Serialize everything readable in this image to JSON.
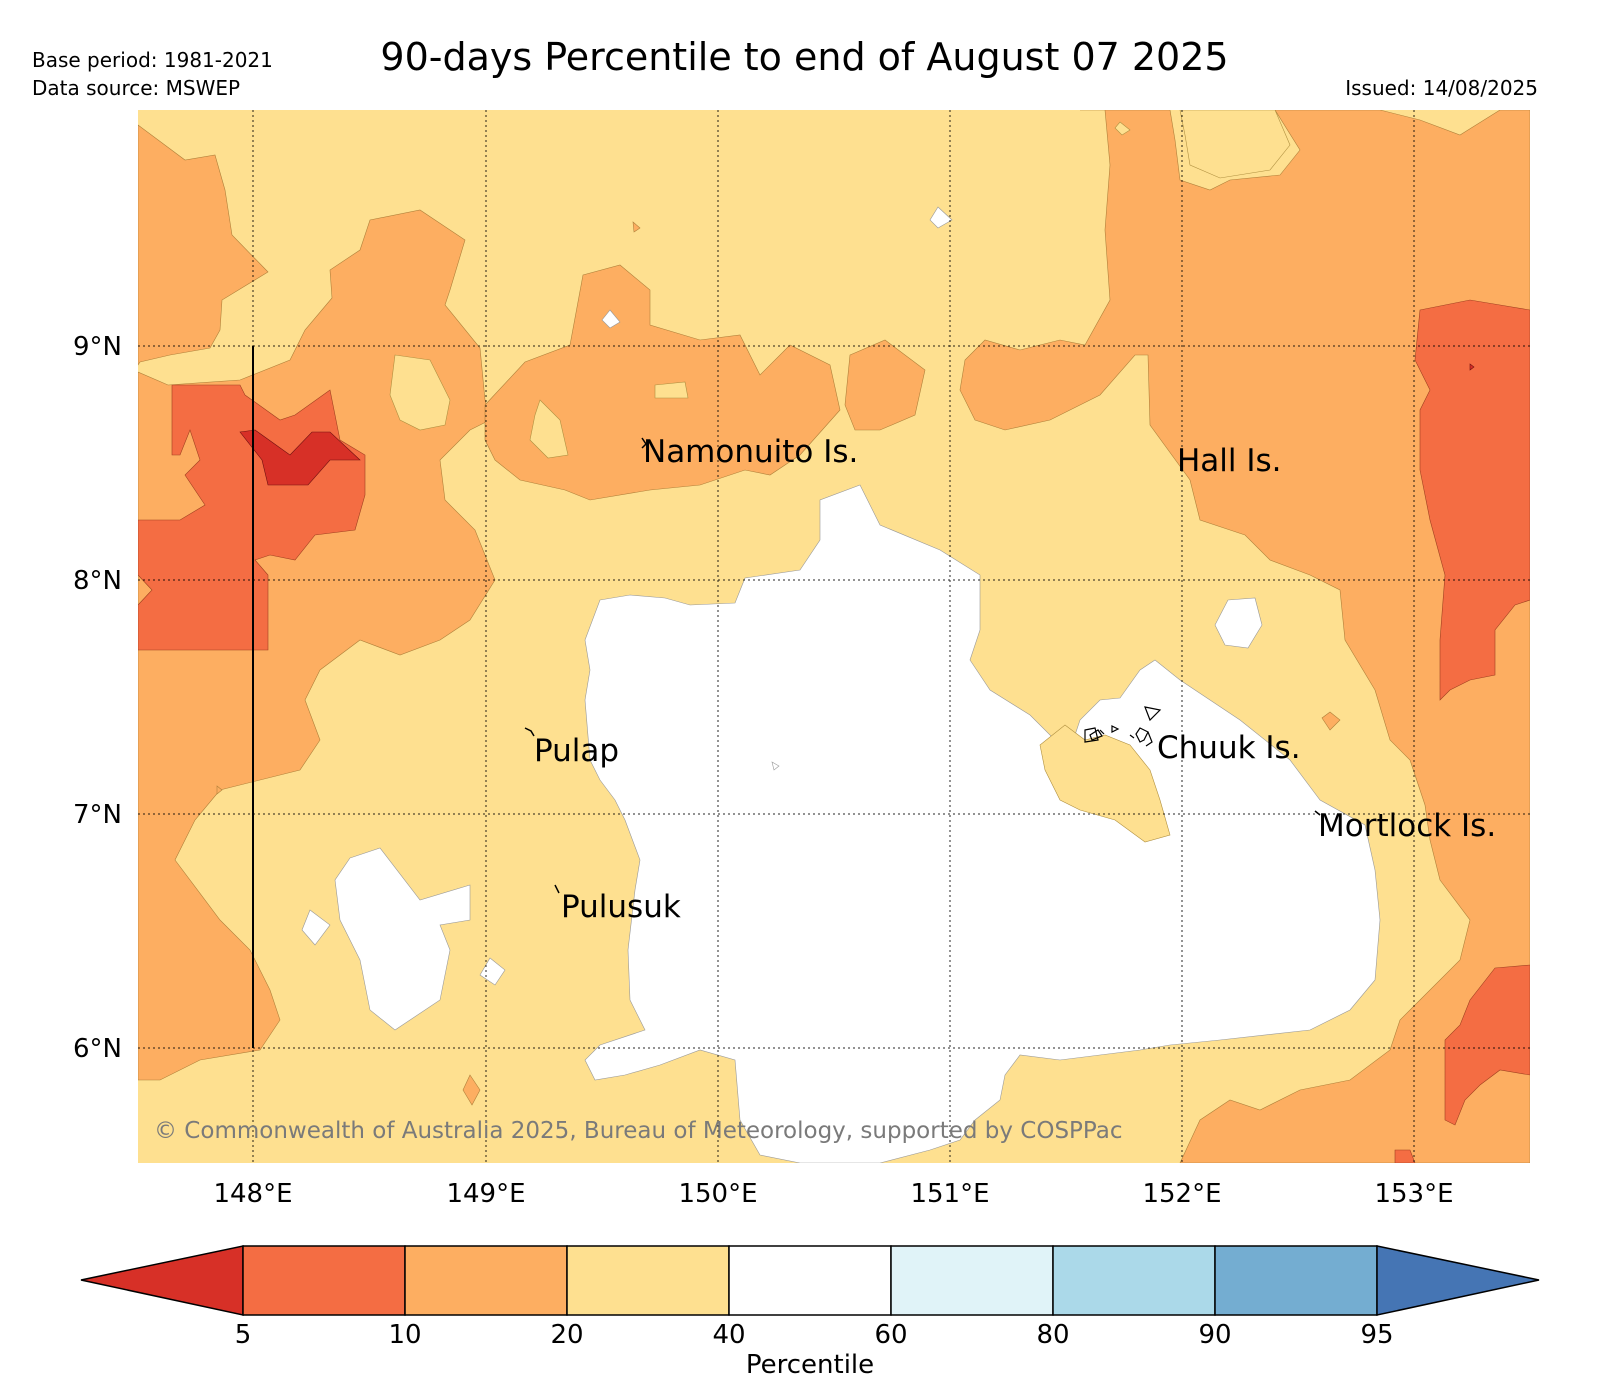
{
  "header": {
    "title": "90-days Percentile to end of August 07 2025",
    "base_period": "Base period: 1981-2021",
    "data_source": "Data source: MSWEP",
    "issued": "Issued: 14/08/2025"
  },
  "map": {
    "lon_range": [
      147.5,
      153.5
    ],
    "lat_range": [
      5.5,
      10.0
    ],
    "lon_ticks": [
      {
        "value": 148,
        "label": "148°E"
      },
      {
        "value": 149,
        "label": "149°E"
      },
      {
        "value": 150,
        "label": "150°E"
      },
      {
        "value": 151,
        "label": "151°E"
      },
      {
        "value": 152,
        "label": "152°E"
      },
      {
        "value": 153,
        "label": "153°E"
      }
    ],
    "lat_ticks": [
      {
        "value": 9,
        "label": "9°N"
      },
      {
        "value": 8,
        "label": "8°N"
      },
      {
        "value": 7,
        "label": "7°N"
      },
      {
        "value": 6,
        "label": "6°N"
      }
    ],
    "places": [
      {
        "name": "Namonuito Is.",
        "lon": 149.68,
        "lat": 8.58
      },
      {
        "name": "Hall Is.",
        "lon": 151.98,
        "lat": 8.53
      },
      {
        "name": "Pulap",
        "lon": 149.21,
        "lat": 7.3
      },
      {
        "name": "Chuuk Is.",
        "lon": 151.85,
        "lat": 7.31
      },
      {
        "name": "Mortlock Is.",
        "lon": 152.6,
        "lat": 6.97
      },
      {
        "name": "Pulusuk",
        "lon": 149.32,
        "lat": 6.63
      }
    ],
    "copyright": "© Commonwealth of Australia 2025, Bureau of Meteorology, supported by COSPPac"
  },
  "colorbar": {
    "label": "Percentile",
    "ticks": [
      "5",
      "10",
      "20",
      "40",
      "60",
      "80",
      "90",
      "95"
    ],
    "colors": {
      "below_5": "#d73027",
      "p5_10": "#f46d43",
      "p10_20": "#fdae61",
      "p20_40": "#fee090",
      "p40_60": "#ffffff",
      "p60_80": "#e0f3f8",
      "p80_90": "#abd9e9",
      "p90_95": "#74add1",
      "above_95": "#4575b4"
    }
  }
}
